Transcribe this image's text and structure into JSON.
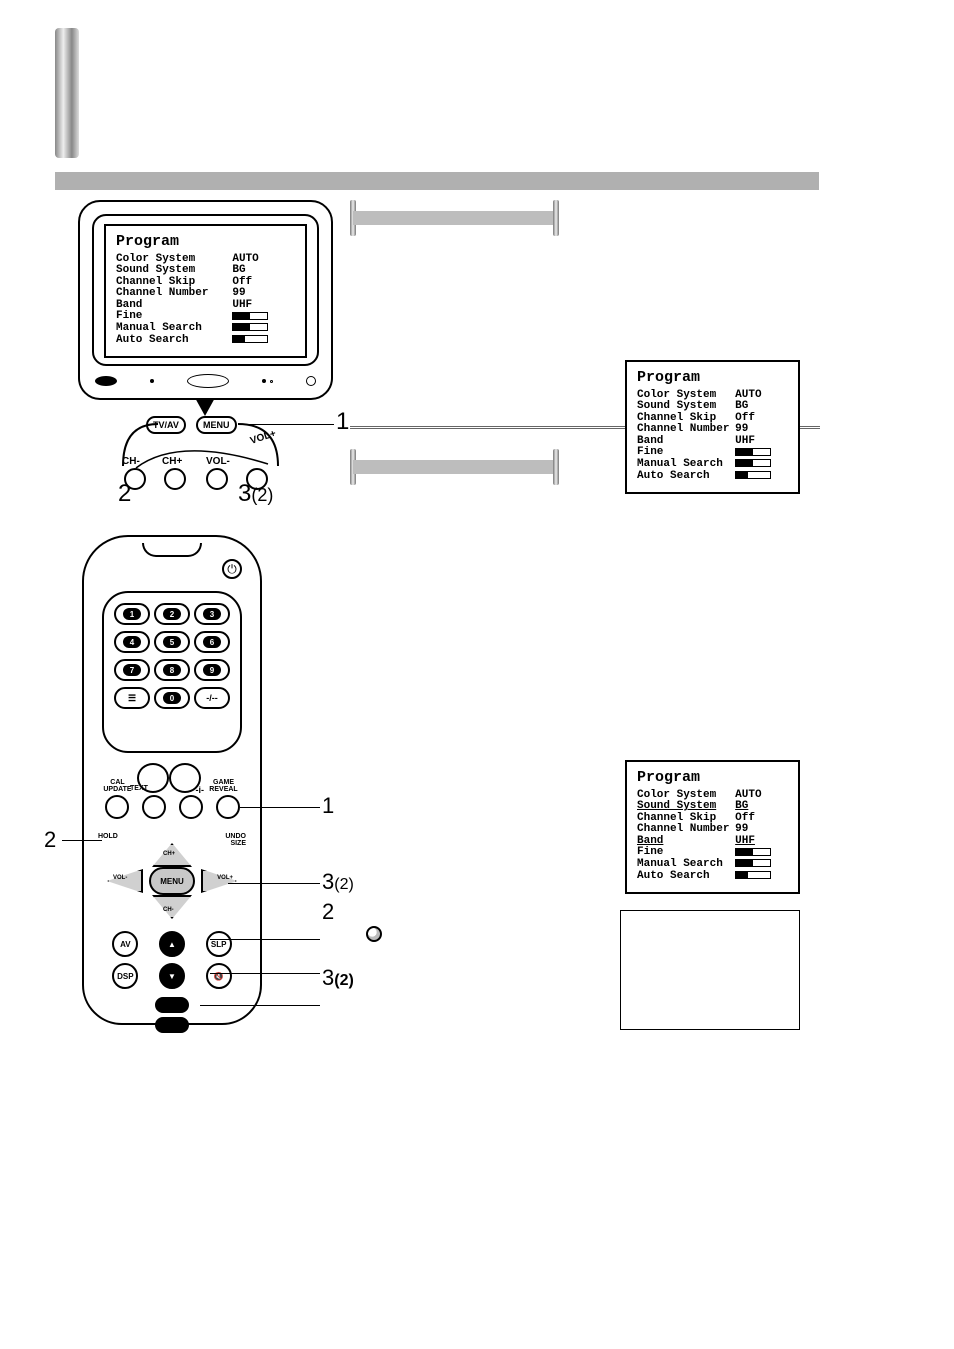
{
  "spine": true,
  "tv_osd": {
    "title": "Program",
    "rows": [
      {
        "label": "Color System",
        "value": "AUTO",
        "kind": "text"
      },
      {
        "label": "Sound System",
        "value": "BG",
        "kind": "text"
      },
      {
        "label": "Channel Skip",
        "value": "Off",
        "kind": "text"
      },
      {
        "label": "Channel Number",
        "value": "99",
        "kind": "text"
      },
      {
        "label": "Band",
        "value": "UHF",
        "kind": "text"
      },
      {
        "label": "Fine",
        "value": "",
        "kind": "bar",
        "fill_pct": 50
      },
      {
        "label": "Manual Search",
        "value": "",
        "kind": "bar",
        "fill_pct": 50
      },
      {
        "label": "Auto Search",
        "value": "",
        "kind": "bar",
        "fill_pct": 35
      }
    ]
  },
  "osd1": {
    "title": "Program",
    "rows": [
      {
        "label": "Color System",
        "value": "AUTO",
        "kind": "text"
      },
      {
        "label": "Sound System",
        "value": "BG",
        "kind": "text"
      },
      {
        "label": "Channel Skip",
        "value": "Off",
        "kind": "text"
      },
      {
        "label": "Channel Number",
        "value": "99",
        "kind": "text"
      },
      {
        "label": "Band",
        "value": "UHF",
        "kind": "text"
      },
      {
        "label": "Fine",
        "value": "",
        "kind": "bar",
        "fill_pct": 50
      },
      {
        "label": "Manual Search",
        "value": "",
        "kind": "bar",
        "fill_pct": 50
      },
      {
        "label": "Auto Search",
        "value": "",
        "kind": "bar",
        "fill_pct": 35
      }
    ]
  },
  "osd2": {
    "title": "Program",
    "rows": [
      {
        "label": "Color System",
        "value": "AUTO",
        "kind": "text"
      },
      {
        "label": "Sound System",
        "value": "BG",
        "kind": "text",
        "hl": true
      },
      {
        "label": "Channel Skip",
        "value": "Off",
        "kind": "text"
      },
      {
        "label": "Channel Number",
        "value": "99",
        "kind": "text"
      },
      {
        "label": "Band",
        "value": "UHF",
        "kind": "text",
        "hl": true
      },
      {
        "label": "Fine",
        "value": "",
        "kind": "bar",
        "fill_pct": 50
      },
      {
        "label": "Manual Search",
        "value": "",
        "kind": "bar",
        "fill_pct": 50
      },
      {
        "label": "Auto Search",
        "value": "",
        "kind": "bar",
        "fill_pct": 35
      }
    ]
  },
  "cluster": {
    "labels": {
      "tvav": "TV/AV",
      "menu": "MENU",
      "chm": "CH-",
      "chp": "CH+",
      "volm": "VOL-",
      "volp": "VOL+"
    },
    "callouts": {
      "c1": "1",
      "c2": "2",
      "c3": "3",
      "c3paren": "(2)"
    }
  },
  "remote": {
    "keypad": [
      "1",
      "2",
      "3",
      "4",
      "5",
      "6",
      "7",
      "8",
      "9",
      "",
      "0",
      ""
    ],
    "keypad_alt": {
      "9_left": "",
      "9_right": ""
    },
    "row2_labels": {
      "l": "CAL\nUPDATE",
      "r": "GAME\nREVEAL",
      "text": "TEXT",
      "i": "-i-"
    },
    "row4_labels": {
      "l": "HOLD",
      "r": "UNDO\nSIZE"
    },
    "dpad": {
      "up": "CH+",
      "down": "CH-",
      "left": "VOL-",
      "right": "VOL+",
      "center": "MENU"
    },
    "row5": [
      "AV",
      "▲",
      "SLP"
    ],
    "row6": [
      "DSP",
      "▼",
      "🔇"
    ],
    "callouts": {
      "c1": "1",
      "c2_left": "2",
      "c3_2": "3",
      "c3_2paren": "(2)",
      "c2_r": "2",
      "c3b": "3",
      "c3bparen": "(2)"
    }
  },
  "colors": {
    "hatch": "#b0b0b0",
    "spine_mid": "#e8e8e8",
    "black": "#000000",
    "grey": "#bdbdbd"
  }
}
